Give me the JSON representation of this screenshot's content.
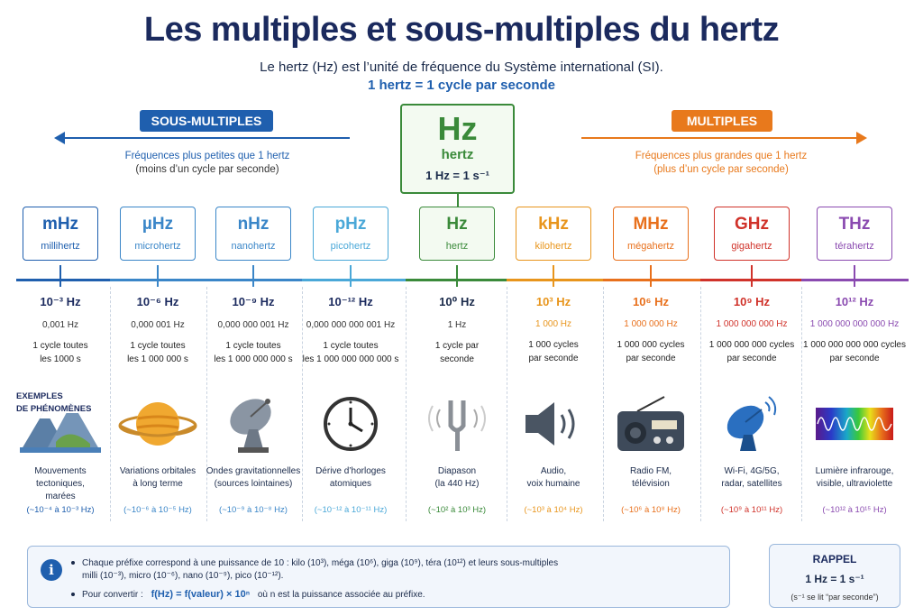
{
  "title": "Les multiples et sous-multiples du hertz",
  "subtitle": "Le hertz (Hz) est l’unité de fréquence du Système international (SI).",
  "subtitle2": "1 hertz = 1 cycle par seconde",
  "submultiples": {
    "label": "SOUS-MULTIPLES",
    "desc1": "Fréquences plus petites que 1 hertz",
    "desc2": "(moins d’un cycle par seconde)",
    "color": "#1f5fae"
  },
  "multiples": {
    "label": "MULTIPLES",
    "desc1": "Fréquences plus grandes que 1 hertz",
    "desc2": "(plus d’un cycle par seconde)",
    "color": "#e8791c"
  },
  "hz_box": {
    "symbol": "Hz",
    "name": "hertz",
    "equation": "1 Hz = 1 s⁻¹"
  },
  "examples_label": [
    "EXEMPLES",
    "DE PHÉNOMÈNES"
  ],
  "units": [
    {
      "symbol": "mHz",
      "name": "millihertz",
      "power": "10⁻³ Hz",
      "decimal": "0,001 Hz",
      "cycles": [
        "1 cycle toutes",
        "les 1000 s"
      ],
      "example": [
        "Mouvements",
        "tectoniques,",
        "marées"
      ],
      "range": "(~10⁻⁴ à 10⁻³ Hz)",
      "icon": "mountains-icon",
      "color": "#1f5fae"
    },
    {
      "symbol": "µHz",
      "name": "microhertz",
      "power": "10⁻⁶ Hz",
      "decimal": "0,000 001 Hz",
      "cycles": [
        "1 cycle toutes",
        "les 1 000 000 s"
      ],
      "example": [
        "Variations orbitales",
        "à long terme"
      ],
      "range": "(~10⁻⁶ à 10⁻⁵ Hz)",
      "icon": "planet-icon",
      "color": "#3a86c8"
    },
    {
      "symbol": "nHz",
      "name": "nanohertz",
      "power": "10⁻⁹ Hz",
      "decimal": "0,000 000 001 Hz",
      "cycles": [
        "1 cycle toutes",
        "les 1 000 000 000 s"
      ],
      "example": [
        "Ondes gravitationnelles",
        "(sources lointaines)"
      ],
      "range": "(~10⁻⁹ à 10⁻⁸ Hz)",
      "icon": "satellite-dish-icon",
      "color": "#3a86c8"
    },
    {
      "symbol": "pHz",
      "name": "picohertz",
      "power": "10⁻¹² Hz",
      "decimal": "0,000 000 000 001 Hz",
      "cycles": [
        "1 cycle toutes",
        "les 1 000 000 000 000 s"
      ],
      "example": [
        "Dérive d’horloges",
        "atomiques"
      ],
      "range": "(~10⁻¹² à 10⁻¹¹ Hz)",
      "icon": "clock-icon",
      "color": "#4aa8d8"
    },
    {
      "symbol": "Hz",
      "name": "hertz",
      "power": "10⁰ Hz",
      "decimal": "1 Hz",
      "cycles": [
        "1 cycle par",
        "seconde"
      ],
      "example": [
        "Diapason",
        "(la 440 Hz)"
      ],
      "range": "(~10² à 10³ Hz)",
      "icon": "tuning-fork-icon",
      "color": "#3a8a3a"
    },
    {
      "symbol": "kHz",
      "name": "kilohertz",
      "power": "10³ Hz",
      "decimal": "1 000 Hz",
      "cycles": [
        "1 000 cycles",
        "par seconde"
      ],
      "example": [
        "Audio,",
        "voix humaine"
      ],
      "range": "(~10³ à 10⁴ Hz)",
      "icon": "speaker-icon",
      "color": "#e8951c"
    },
    {
      "symbol": "MHz",
      "name": "mégahertz",
      "power": "10⁶ Hz",
      "decimal": "1 000 000 Hz",
      "cycles": [
        "1 000 000 cycles",
        "par seconde"
      ],
      "example": [
        "Radio FM,",
        "télévision"
      ],
      "range": "(~10⁶ à 10⁸ Hz)",
      "icon": "radio-icon",
      "color": "#e8701c"
    },
    {
      "symbol": "GHz",
      "name": "gigahertz",
      "power": "10⁹ Hz",
      "decimal": "1 000 000 000 Hz",
      "cycles": [
        "1 000 000 000 cycles",
        "par seconde"
      ],
      "example": [
        "Wi-Fi, 4G/5G,",
        "radar, satellites"
      ],
      "range": "(~10⁹ à 10¹¹ Hz)",
      "icon": "antenna-dish-icon",
      "color": "#d0322a"
    },
    {
      "symbol": "THz",
      "name": "térahertz",
      "power": "10¹² Hz",
      "decimal": "1 000 000 000 000 Hz",
      "cycles": [
        "1 000 000 000 000 cycles",
        "par seconde"
      ],
      "example": [
        "Lumière infrarouge,",
        "visible, ultraviolette"
      ],
      "range": "(~10¹² à 10¹⁵ Hz)",
      "icon": "spectrum-icon",
      "color": "#8a4ab0"
    }
  ],
  "info": {
    "line1": "Chaque préfixe correspond à une puissance de 10 :  kilo (10³), méga (10⁶), giga (10⁹), téra (10¹²) et leurs sous-multiples",
    "line1b": "milli (10⁻³), micro (10⁻⁶), nano (10⁻⁹), pico (10⁻¹²).",
    "line2a": "Pour convertir :",
    "formula": "f(Hz) = f(valeur) × 10ⁿ",
    "line2b": "où n est la puissance associée au préfixe."
  },
  "rappel": {
    "title": "RAPPEL",
    "eq": "1 Hz = 1 s⁻¹",
    "note": "(s⁻¹ se lit “par seconde”)"
  }
}
